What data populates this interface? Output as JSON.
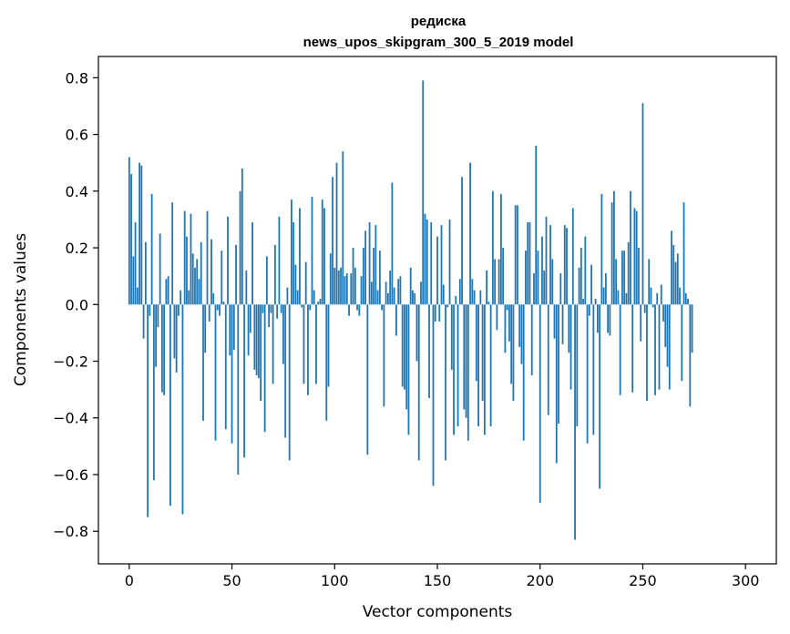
{
  "chart_data": {
    "type": "bar",
    "title": "редиска",
    "subtitle": "news_upos_skipgram_300_5_2019 model",
    "xlabel": "Vector components",
    "ylabel": "Components values",
    "xlim": [
      -15,
      315
    ],
    "ylim": [
      -0.915,
      0.875
    ],
    "xticks": [
      0,
      50,
      100,
      150,
      200,
      250,
      300
    ],
    "xtick_labels": [
      "0",
      "50",
      "100",
      "150",
      "200",
      "250",
      "300"
    ],
    "yticks": [
      -0.8,
      -0.6,
      -0.4,
      -0.2,
      0.0,
      0.2,
      0.4,
      0.6,
      0.8
    ],
    "ytick_labels": [
      "−0.8",
      "−0.6",
      "−0.4",
      "−0.2",
      "0.0",
      "0.2",
      "0.4",
      "0.6",
      "0.8"
    ],
    "grid": false,
    "bar_color": "#1f77b4",
    "values": [
      0.52,
      0.46,
      0.17,
      0.29,
      0.06,
      0.5,
      0.49,
      -0.12,
      0.22,
      -0.75,
      -0.04,
      0.39,
      -0.62,
      -0.22,
      -0.08,
      0.25,
      -0.31,
      -0.32,
      0.09,
      0.1,
      -0.71,
      0.36,
      -0.19,
      -0.24,
      -0.04,
      0.05,
      -0.74,
      0.33,
      0.24,
      0.05,
      0.32,
      0.18,
      0.13,
      0.16,
      0.09,
      0.22,
      -0.41,
      -0.17,
      0.33,
      -0.06,
      0.23,
      0.04,
      -0.48,
      -0.02,
      -0.04,
      0.19,
      0.01,
      -0.44,
      0.31,
      -0.18,
      -0.49,
      -0.16,
      0.21,
      -0.6,
      0.4,
      0.48,
      -0.54,
      0.12,
      -0.18,
      -0.1,
      0.29,
      -0.23,
      -0.25,
      -0.26,
      -0.34,
      -0.03,
      -0.45,
      0.17,
      -0.08,
      -0.03,
      -0.28,
      0.21,
      -0.05,
      0.31,
      -0.03,
      -0.21,
      -0.47,
      0.06,
      -0.55,
      0.37,
      0.29,
      0.14,
      0.05,
      0.34,
      -0.01,
      -0.28,
      0.15,
      -0.32,
      -0.02,
      0.38,
      0.05,
      -0.28,
      0.01,
      0.02,
      0.37,
      0.34,
      -0.41,
      -0.29,
      0.18,
      0.45,
      0.13,
      0.5,
      0.12,
      0.13,
      0.54,
      0.1,
      0.11,
      -0.04,
      0.11,
      0.2,
      0.13,
      -0.02,
      -0.04,
      0.1,
      0.2,
      0.26,
      -0.53,
      0.29,
      0.08,
      0.2,
      0.28,
      0.05,
      0.19,
      -0.02,
      -0.36,
      0.08,
      0.04,
      0.12,
      0.43,
      0.06,
      -0.11,
      0.09,
      0.1,
      -0.29,
      -0.3,
      -0.37,
      -0.46,
      0.13,
      0.05,
      0.04,
      -0.2,
      -0.55,
      0.08,
      0.79,
      0.32,
      0.3,
      -0.33,
      0.29,
      -0.64,
      -0.06,
      0.24,
      -0.06,
      0.28,
      0.07,
      -0.55,
      -0.01,
      0.3,
      -0.23,
      -0.46,
      0.03,
      -0.43,
      0.09,
      0.45,
      -0.37,
      -0.4,
      -0.48,
      0.5,
      0.09,
      0.05,
      -0.27,
      -0.43,
      0.05,
      -0.34,
      -0.46,
      0.12,
      0.01,
      -0.43,
      0.4,
      0.16,
      -0.09,
      0.16,
      0.39,
      0.2,
      -0.17,
      -0.02,
      -0.13,
      -0.28,
      -0.34,
      0.35,
      0.35,
      -0.15,
      -0.21,
      -0.48,
      0.19,
      0.29,
      0.29,
      -0.25,
      0.11,
      0.56,
      0.19,
      -0.7,
      0.24,
      0.12,
      0.31,
      -0.39,
      0.28,
      0.16,
      -0.12,
      -0.56,
      -0.42,
      0.11,
      -0.14,
      0.28,
      0.27,
      -0.17,
      -0.3,
      0.34,
      -0.83,
      -0.43,
      0.13,
      0.2,
      0.02,
      0.24,
      -0.49,
      -0.04,
      0.14,
      -0.46,
      0.02,
      -0.1,
      -0.65,
      0.39,
      0.06,
      0.11,
      -0.1,
      -0.11,
      0.36,
      0.4,
      0.16,
      0.05,
      -0.32,
      0.19,
      0.19,
      0.04,
      0.22,
      0.4,
      -0.31,
      0.34,
      0.33,
      0.2,
      -0.13,
      0.71,
      -0.03,
      -0.34,
      0.16,
      0.06,
      -0.01,
      -0.32,
      0.04,
      -0.3,
      0.07,
      -0.06,
      -0.15,
      -0.22,
      -0.3,
      0.26,
      0.21,
      0.15,
      0.18,
      0.06,
      -0.27,
      0.36,
      0.04,
      0.02,
      -0.36,
      -0.17
    ]
  }
}
